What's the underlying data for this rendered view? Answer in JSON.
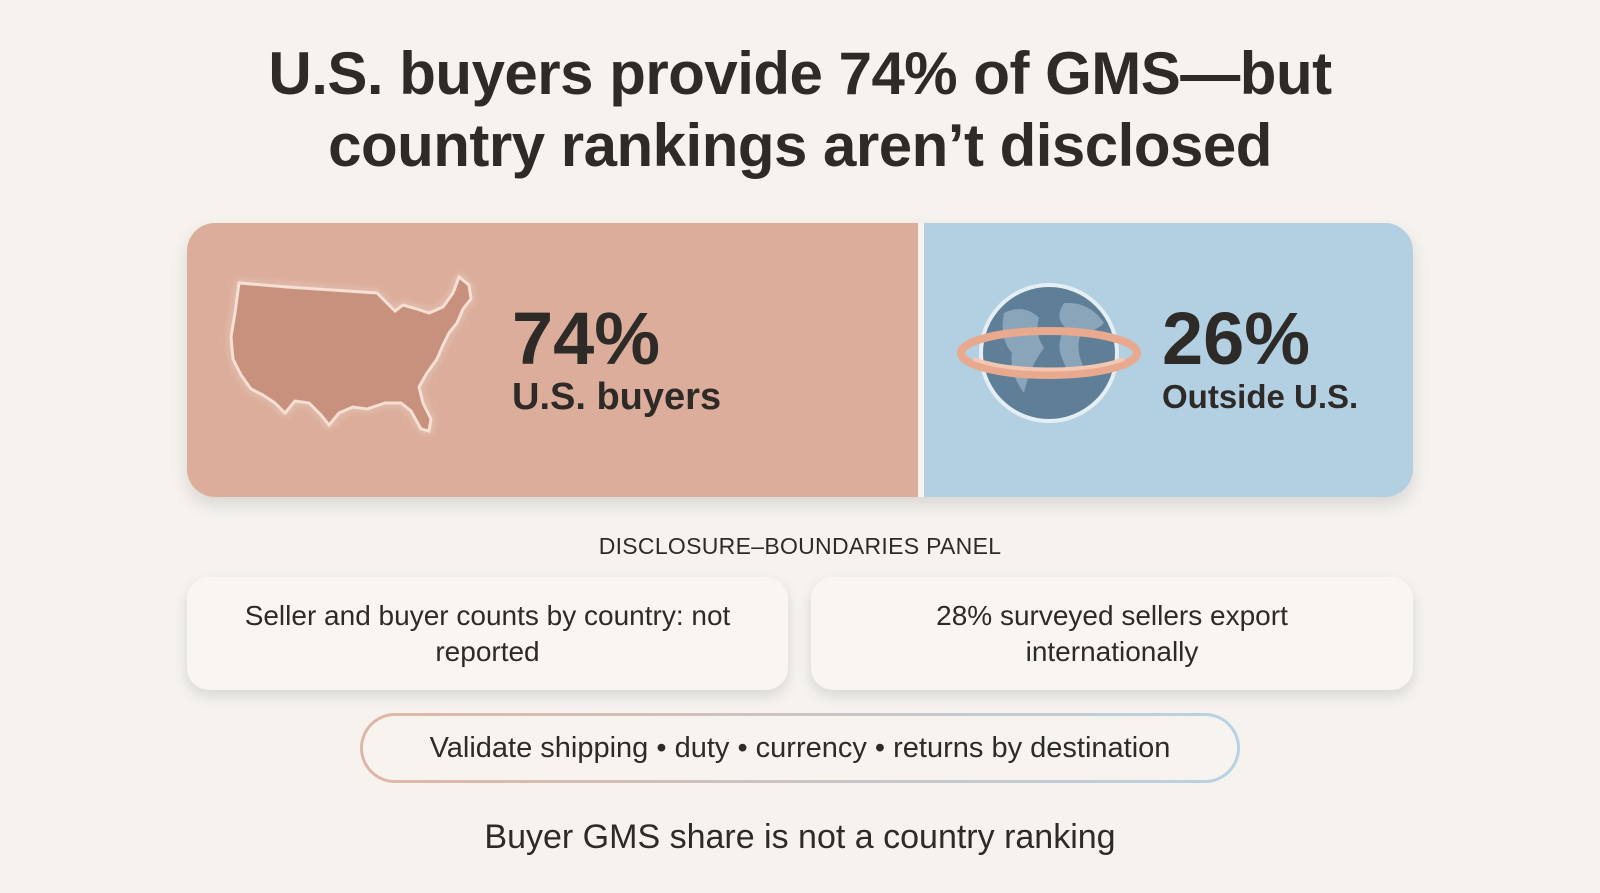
{
  "title": "U.S. buyers provide 74% of GMS—but country rankings aren’t disclosed",
  "split": [
    {
      "value": "74%",
      "label": "U.S. buyers"
    },
    {
      "value": "26%",
      "label": "Outside U.S."
    }
  ],
  "panel": {
    "heading": "DISCLOSURE–BOUNDARIES PANEL",
    "cards": [
      "Seller and buyer counts by country: not reported",
      "28% surveyed sellers export internationally"
    ],
    "pill": "Validate shipping • duty • currency • returns by destination"
  },
  "footer": "Buyer GMS share is not a country ranking"
}
